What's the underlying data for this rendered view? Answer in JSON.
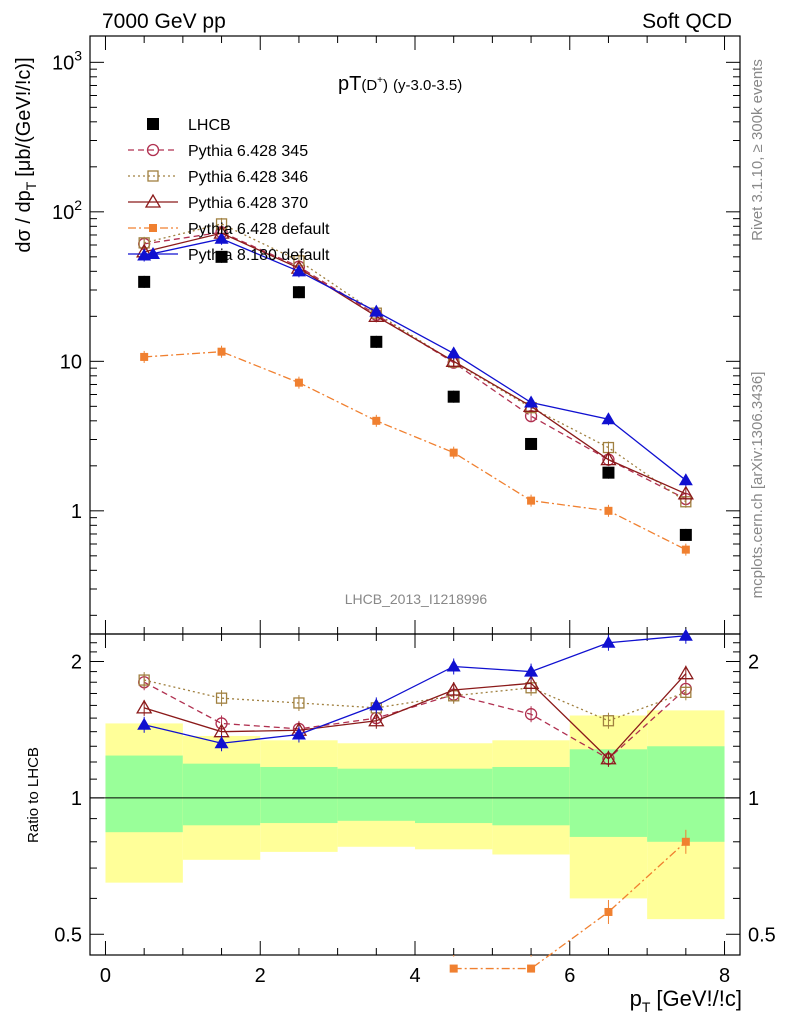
{
  "header": {
    "left": "7000 GeV pp",
    "right": "Soft QCD"
  },
  "side_labels": {
    "rivet": "Rivet 3.1.10, ≥ 300k events",
    "mcplots": "mcplots.cern.ch [arXiv:1306.3436]"
  },
  "chart_data": [
    {
      "type": "scatter",
      "title": "pT(D⁺) (y-3.0-3.5)",
      "title_main": "pT",
      "title_particle": "(D",
      "title_sup": "+",
      "title_close": ")",
      "title_range": "(y-3.0-3.5)",
      "watermark": "LHCB_2013_I1218996",
      "ylabel": "dσ / dp_T [μb/(GeV!/!c)]",
      "ylabel_main": "dσ / dp",
      "ylabel_sub": "T",
      "ylabel_unit": "[μb/(GeV!/!c)]",
      "yscale": "log",
      "xlim": [
        -0.2,
        8.2
      ],
      "ylim": [
        0.15,
        1500
      ],
      "ytick_labels": [
        "1",
        "10",
        "10",
        "10"
      ],
      "ytick_sups": [
        "",
        "",
        "2",
        "3"
      ],
      "legend_position": "top-left",
      "series": [
        {
          "name": "LHCB",
          "marker": "square-filled",
          "color": "#000000",
          "line": "none",
          "x": [
            0.5,
            1.5,
            2.5,
            3.5,
            4.5,
            5.5,
            6.5,
            7.5
          ],
          "y": [
            34,
            50,
            29,
            13.5,
            5.8,
            2.8,
            1.8,
            0.69
          ]
        },
        {
          "name": "Pythia 6.428 345",
          "marker": "circle-open",
          "color": "#b03050",
          "line": "dashed",
          "x": [
            0.5,
            1.5,
            2.5,
            3.5,
            4.5,
            5.5,
            6.5,
            7.5
          ],
          "y": [
            61,
            73,
            43,
            20.5,
            9.8,
            4.3,
            2.2,
            1.2
          ]
        },
        {
          "name": "Pythia 6.428 346",
          "marker": "square-open",
          "color": "#a08040",
          "line": "dotted",
          "x": [
            0.5,
            1.5,
            2.5,
            3.5,
            4.5,
            5.5,
            6.5,
            7.5
          ],
          "y": [
            62,
            83,
            47,
            21,
            9.9,
            4.9,
            2.65,
            1.15
          ]
        },
        {
          "name": "Pythia 6.428 370",
          "marker": "triangle-open",
          "color": "#8b1a1a",
          "line": "solid",
          "x": [
            0.5,
            1.5,
            2.5,
            3.5,
            4.5,
            5.5,
            6.5,
            7.5
          ],
          "y": [
            54,
            72,
            42,
            20,
            10,
            5,
            2.2,
            1.3
          ]
        },
        {
          "name": "Pythia 6.428 default",
          "marker": "square-filled-small",
          "color": "#f08030",
          "line": "dashdot",
          "x": [
            0.5,
            1.5,
            2.5,
            3.5,
            4.5,
            5.5,
            6.5,
            7.5
          ],
          "y": [
            10.7,
            11.6,
            7.2,
            4.0,
            2.45,
            1.17,
            1.0,
            0.55
          ]
        },
        {
          "name": "Pythia 8.180 default",
          "marker": "triangle-filled",
          "color": "#1010d0",
          "line": "solid",
          "x": [
            0.5,
            1.5,
            2.5,
            3.5,
            4.5,
            5.5,
            6.5,
            7.5
          ],
          "y": [
            51,
            66,
            40,
            21.5,
            11.3,
            5.3,
            4.1,
            1.6
          ]
        }
      ]
    },
    {
      "type": "scatter",
      "ylabel": "Ratio to LHCB",
      "xlabel": "p_T [GeV!/!c]",
      "xlabel_main": "p",
      "xlabel_sub": "T",
      "xlabel_unit": "[GeV!/!c]",
      "xlim": [
        -0.2,
        8.2
      ],
      "ylim": [
        0.45,
        2.3
      ],
      "yscale": "log",
      "xtick_labels": [
        "0",
        "2",
        "4",
        "6",
        "8"
      ],
      "ytick_labels": [
        "0.5",
        "1",
        "2"
      ],
      "bands": {
        "x_edges": [
          0,
          1,
          2,
          3,
          4,
          5,
          6,
          7,
          8
        ],
        "inner_low": [
          0.84,
          0.87,
          0.88,
          0.89,
          0.88,
          0.87,
          0.82,
          0.8
        ],
        "inner_high": [
          1.24,
          1.19,
          1.17,
          1.16,
          1.16,
          1.17,
          1.28,
          1.3
        ],
        "outer_low": [
          0.65,
          0.73,
          0.76,
          0.78,
          0.77,
          0.75,
          0.6,
          0.54
        ],
        "outer_high": [
          1.46,
          1.37,
          1.34,
          1.32,
          1.32,
          1.34,
          1.52,
          1.56
        ]
      },
      "series": [
        {
          "name": "Pythia 6.428 345",
          "x": [
            0.5,
            1.5,
            2.5,
            3.5,
            4.5,
            5.5,
            6.5,
            7.5
          ],
          "y": [
            1.8,
            1.46,
            1.42,
            1.5,
            1.69,
            1.53,
            1.22,
            1.74
          ]
        },
        {
          "name": "Pythia 6.428 346",
          "x": [
            0.5,
            1.5,
            2.5,
            3.5,
            4.5,
            5.5,
            6.5,
            7.5
          ],
          "y": [
            1.82,
            1.66,
            1.62,
            1.58,
            1.68,
            1.75,
            1.48,
            1.71
          ]
        },
        {
          "name": "Pythia 6.428 370",
          "x": [
            0.5,
            1.5,
            2.5,
            3.5,
            4.5,
            5.5,
            6.5,
            7.5
          ],
          "y": [
            1.58,
            1.4,
            1.41,
            1.48,
            1.73,
            1.79,
            1.22,
            1.88
          ]
        },
        {
          "name": "Pythia 6.428 default",
          "x": [
            4.5,
            5.5,
            6.5,
            7.5
          ],
          "y": [
            0.42,
            0.42,
            0.56,
            0.8
          ]
        },
        {
          "name": "Pythia 8.180 default",
          "x": [
            0.5,
            1.5,
            2.5,
            3.5,
            4.5,
            5.5,
            6.5,
            7.5
          ],
          "y": [
            1.45,
            1.32,
            1.38,
            1.6,
            1.95,
            1.9,
            2.2,
            2.28
          ]
        }
      ]
    }
  ]
}
